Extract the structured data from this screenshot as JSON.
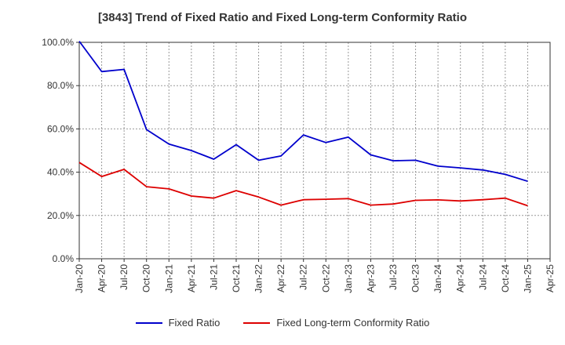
{
  "chart_data": {
    "type": "line",
    "title": "[3843]  Trend of Fixed Ratio and Fixed Long-term Conformity Ratio",
    "xlabel": "",
    "ylabel": "",
    "x_tick_labels": [
      "Jan-20",
      "Apr-20",
      "Jul-20",
      "Oct-20",
      "Jan-21",
      "Apr-21",
      "Jul-21",
      "Oct-21",
      "Jan-22",
      "Apr-22",
      "Jul-22",
      "Oct-22",
      "Jan-23",
      "Apr-23",
      "Jul-23",
      "Oct-23",
      "Jan-24",
      "Apr-24",
      "Jul-24",
      "Oct-24",
      "Jan-25",
      "Apr-25"
    ],
    "x": [
      "Jan-20",
      "Apr-20",
      "Jul-20",
      "Oct-20",
      "Jan-21",
      "Apr-21",
      "Jul-21",
      "Oct-21",
      "Jan-22",
      "Apr-22",
      "Jul-22",
      "Oct-22",
      "Jan-23",
      "Apr-23",
      "Jul-23",
      "Oct-23",
      "Jan-24",
      "Apr-24",
      "Jul-24",
      "Oct-24",
      "Jan-25"
    ],
    "ylim": [
      0,
      100
    ],
    "y_ticks": [
      0,
      20,
      40,
      60,
      80,
      100
    ],
    "y_tick_labels": [
      "0.0%",
      "20.0%",
      "40.0%",
      "60.0%",
      "80.0%",
      "100.0%"
    ],
    "grid": true,
    "legend_position": "bottom",
    "series": [
      {
        "name": "Fixed Ratio",
        "color": "#0000cc",
        "values": [
          100.5,
          86.5,
          87.5,
          59.7,
          53.0,
          50.0,
          46.0,
          52.7,
          45.5,
          47.5,
          57.2,
          53.7,
          56.2,
          48.0,
          45.3,
          45.5,
          42.8,
          42.0,
          41.0,
          39.0,
          35.8
        ]
      },
      {
        "name": "Fixed Long-term Conformity Ratio",
        "color": "#dd0000",
        "values": [
          44.5,
          38.0,
          41.3,
          33.3,
          32.3,
          29.0,
          28.0,
          31.5,
          28.5,
          24.8,
          27.3,
          27.5,
          27.8,
          24.8,
          25.3,
          27.0,
          27.2,
          26.7,
          27.3,
          28.0,
          24.5
        ]
      }
    ]
  }
}
